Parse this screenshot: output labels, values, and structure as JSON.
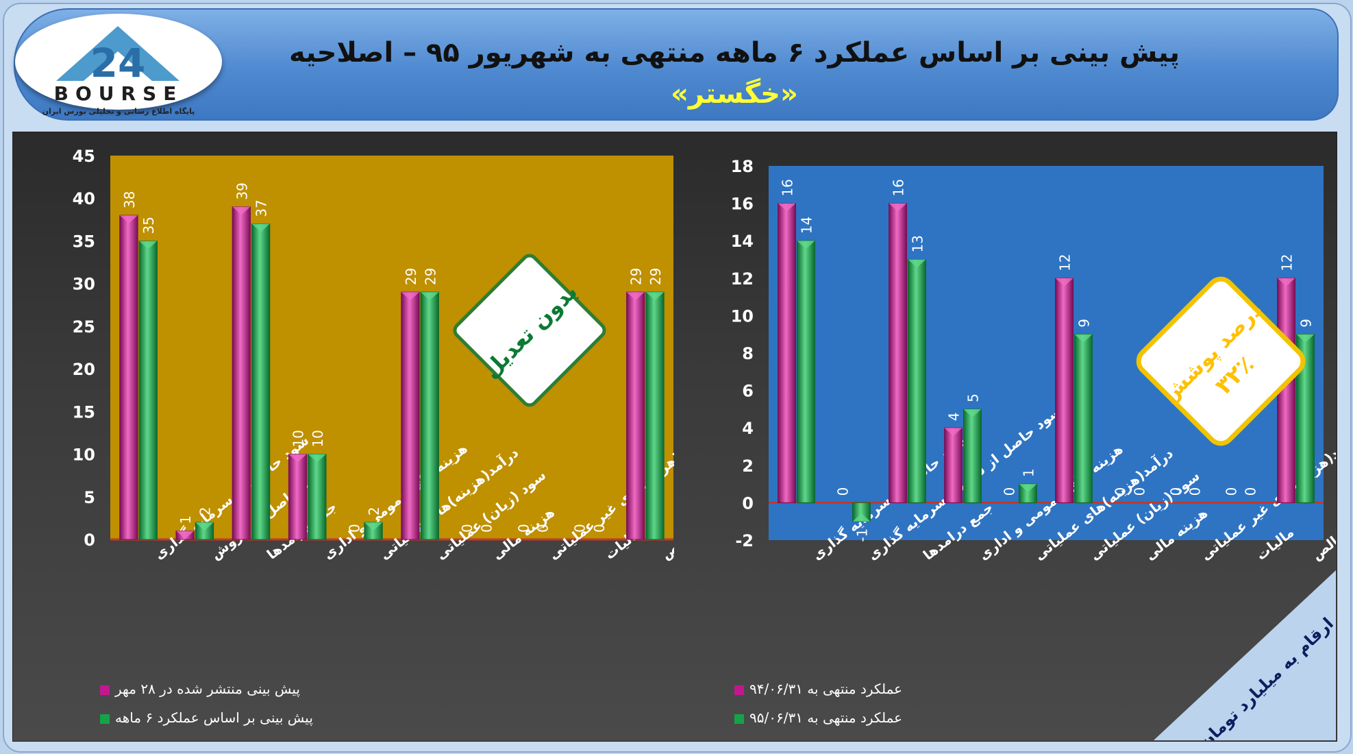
{
  "header": {
    "title_line1": "پیش بینی بر اساس عملکرد ۶ ماهه منتهی به شهریور ۹۵ – اصلاحیه",
    "title_line2": "«خگستر»"
  },
  "logo": {
    "number": "24",
    "text": "BOURSE",
    "subtitle": "پایگاه اطلاع رسانی و تحلیلی بورس ایران"
  },
  "colors": {
    "magenta": "#c2188f",
    "green": "#14a24a",
    "left_plot_bg": "#bf9000",
    "right_plot_bg": "#2e74c2"
  },
  "chart_data": [
    {
      "type": "bar",
      "categories": [
        "سود حاصل از سرمایه گذاری",
        "سود حاصل از فروش",
        "جمع درامدها",
        "هزینه های عمومی و اداری",
        "درآمد(هزینه)های عملیاتی",
        "سود (زیان) عملیاتی",
        "هزینه مالی",
        "درآمد(هزینه)های غیر عملیاتی",
        "مالیات",
        "سود خالص"
      ],
      "series": [
        {
          "name": "پیش بینی منتشر شده در ۲۸ مهر",
          "color": "magenta",
          "values": [
            38,
            1,
            39,
            10,
            0,
            29,
            0,
            0,
            0,
            29
          ]
        },
        {
          "name": "پیش بینی بر اساس عملکرد ۶ ماهه",
          "color": "green",
          "values": [
            35,
            2,
            37,
            10,
            2,
            29,
            0,
            0,
            0,
            29
          ]
        }
      ],
      "ylim": [
        0,
        45
      ],
      "yticks": [
        0,
        5,
        10,
        15,
        20,
        25,
        30,
        35,
        40,
        45
      ],
      "annotation": "بدون تعدیل",
      "legend_position": "bottom-left"
    },
    {
      "type": "bar",
      "categories": [
        "سود حاصل از سرمایه گذاری",
        "سود حاصل از فروش سرمایه گذاری",
        "جمع درامدها",
        "هزینه های عمومی و اداری",
        "درآمد(هزینه)های عملیاتی",
        "سود (زیان) عملیاتی",
        "هزینه مالی",
        "درآمد(هزینه)های غیر عملیاتی",
        "مالیات",
        "سود خالص"
      ],
      "series": [
        {
          "name": "عملکرد منتهی به ۹۴/۰۶/۳۱",
          "color": "magenta",
          "values": [
            16,
            0,
            16,
            4,
            0,
            12,
            0,
            0,
            0,
            12
          ]
        },
        {
          "name": "عملکرد منتهی به ۹۵/۰۶/۳۱",
          "color": "green",
          "values": [
            14,
            -1,
            13,
            5,
            1,
            9,
            0,
            0,
            0,
            9
          ]
        }
      ],
      "ylim": [
        -2,
        18
      ],
      "yticks": [
        -2,
        0,
        2,
        4,
        6,
        8,
        10,
        12,
        14,
        16,
        18
      ],
      "annotation_line1": "درصد پوشش",
      "annotation_line2": "۳۲٪",
      "corner_note": "ارقام به میلیارد تومان",
      "legend_position": "bottom-left"
    }
  ]
}
